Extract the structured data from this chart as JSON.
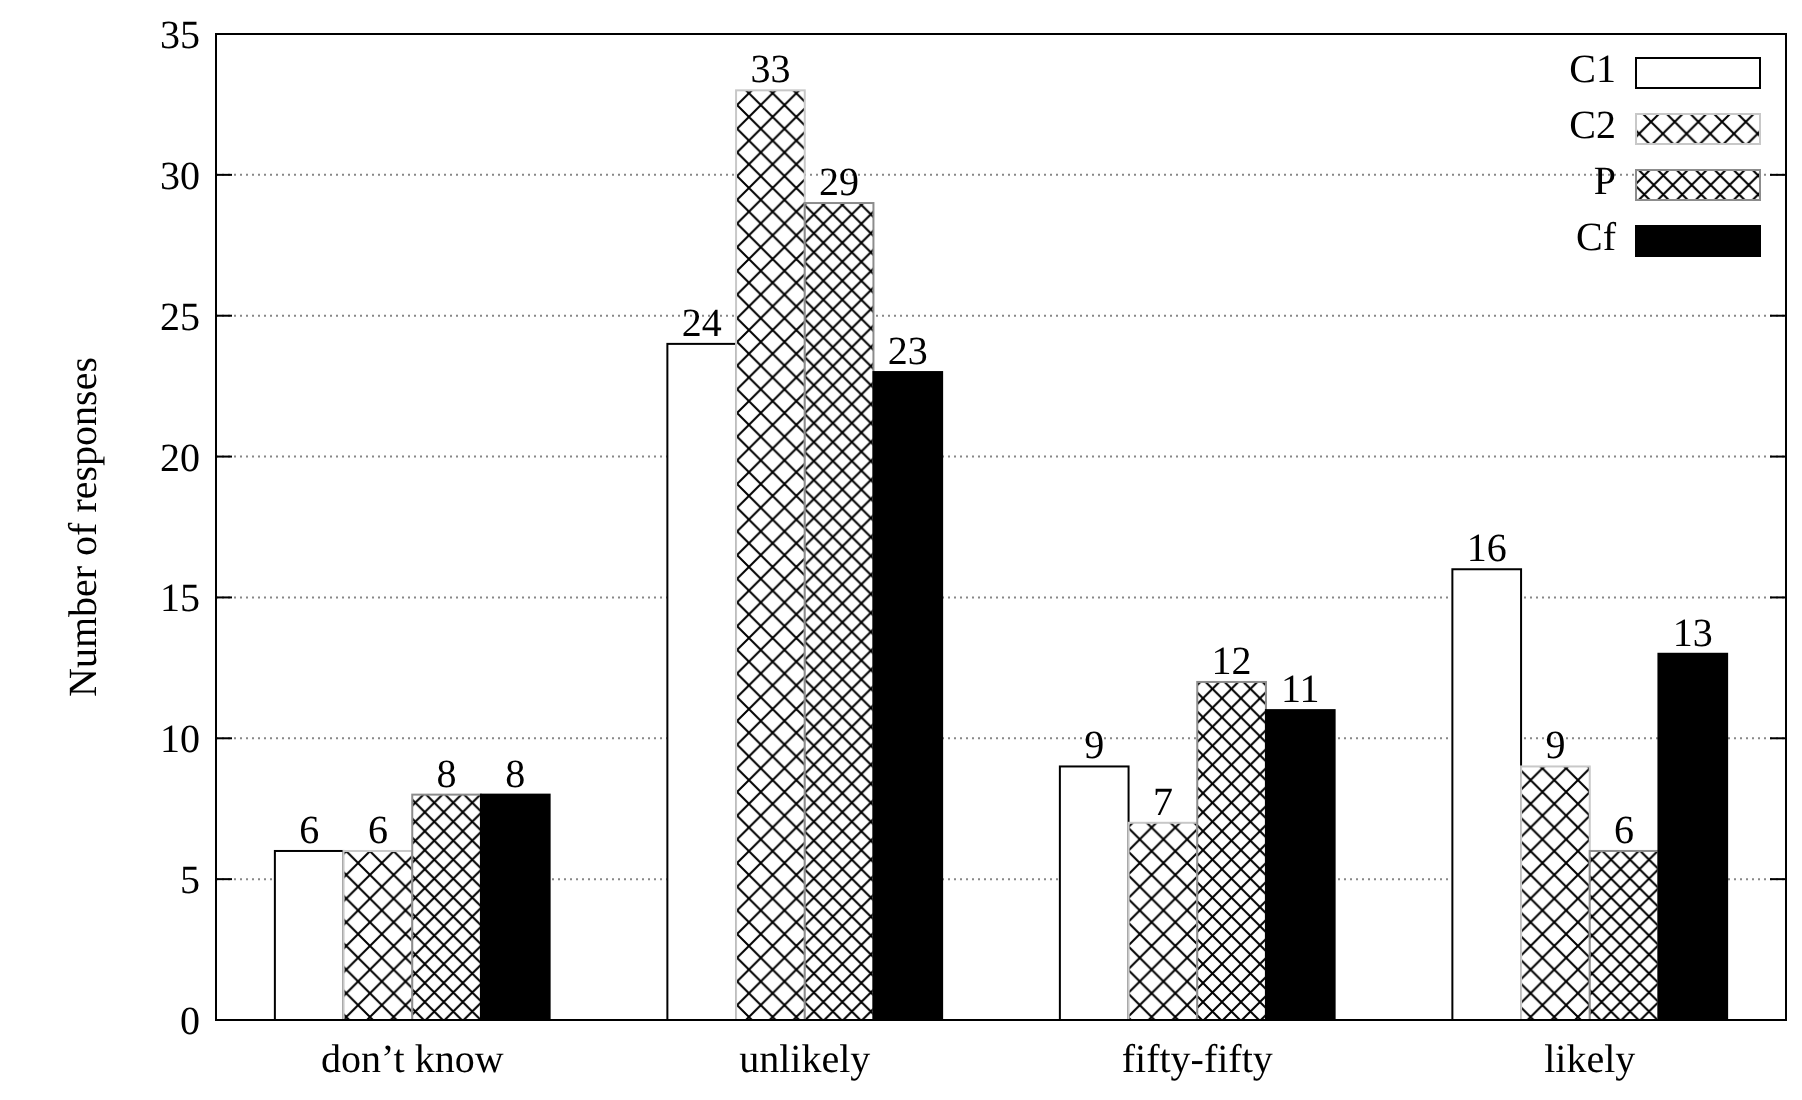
{
  "chart_data": {
    "type": "bar",
    "ylabel": "Number of responses",
    "categories": [
      "don’t know",
      "unlikely",
      "fifty-fifty",
      "likely"
    ],
    "series": [
      {
        "name": "C1",
        "color": "#ffffff",
        "values": [
          6,
          24,
          9,
          16
        ]
      },
      {
        "name": "C2",
        "color": "#c8c8c8",
        "values": [
          6,
          33,
          7,
          9
        ]
      },
      {
        "name": "P",
        "color": "#8c8c8c",
        "values": [
          8,
          29,
          12,
          6
        ]
      },
      {
        "name": "Cf",
        "color": "#000000",
        "values": [
          8,
          23,
          11,
          13
        ]
      }
    ],
    "ylim": [
      0,
      35
    ],
    "yticks": [
      0,
      5,
      10,
      15,
      20,
      25,
      30,
      35
    ],
    "grid": "y",
    "legend": "top right",
    "data_labels": true
  }
}
